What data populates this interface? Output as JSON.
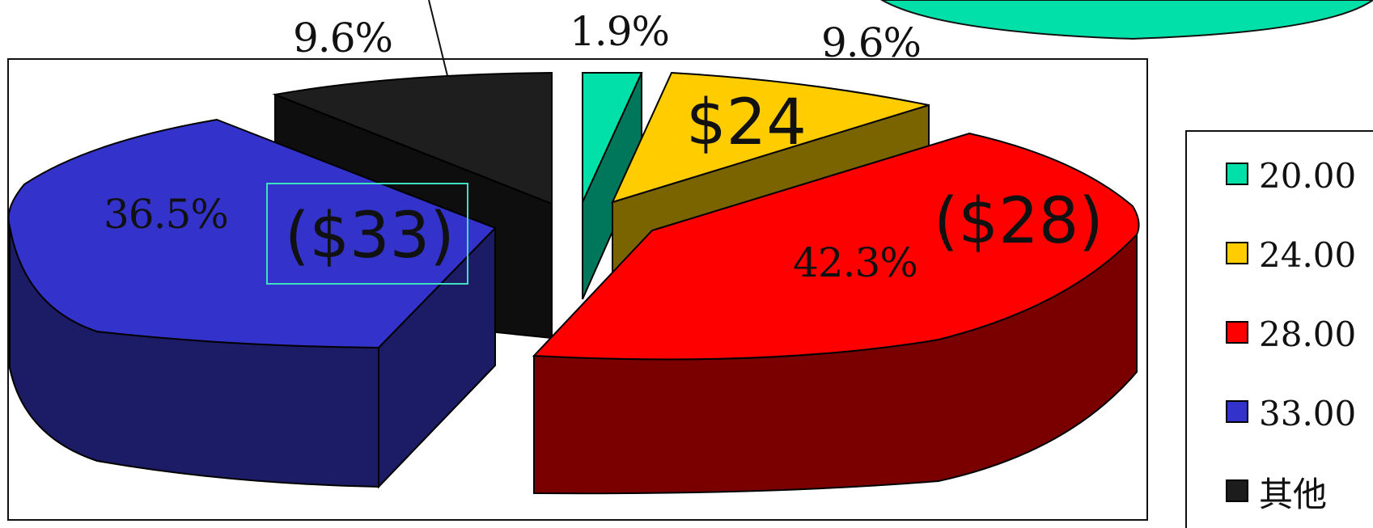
{
  "chart_data": {
    "type": "pie",
    "categories": [
      "20.00",
      "24.00",
      "28.00",
      "33.00",
      "其他"
    ],
    "values": [
      1.9,
      9.6,
      42.3,
      36.5,
      9.6
    ],
    "percent_labels": [
      "1.9%",
      "9.6%",
      "42.3%",
      "36.5%",
      "9.6%"
    ],
    "price_labels": [
      "",
      "$24",
      "($28)",
      "($33)",
      ""
    ],
    "colors": [
      "#00e0a8",
      "#ffcc00",
      "#ff0000",
      "#3333cc",
      "#1c1c1c"
    ],
    "legend_position": "right",
    "exploded": true,
    "three_d": true
  }
}
